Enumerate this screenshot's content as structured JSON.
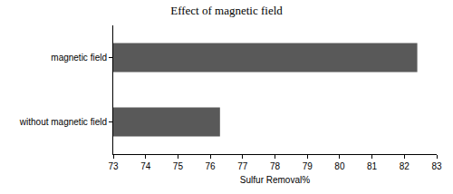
{
  "chart_data": {
    "type": "bar",
    "orientation": "horizontal",
    "title": "Effect of magnetic field",
    "x_label": "Sulfur Removal%",
    "categories": [
      "magnetic field",
      "without magnetic field"
    ],
    "values": [
      82.4,
      76.3
    ],
    "color": "#595959",
    "xlim": [
      73,
      83
    ],
    "xticks": [
      73,
      74,
      75,
      76,
      77,
      78,
      79,
      80,
      81,
      82,
      83
    ],
    "grid": false
  }
}
